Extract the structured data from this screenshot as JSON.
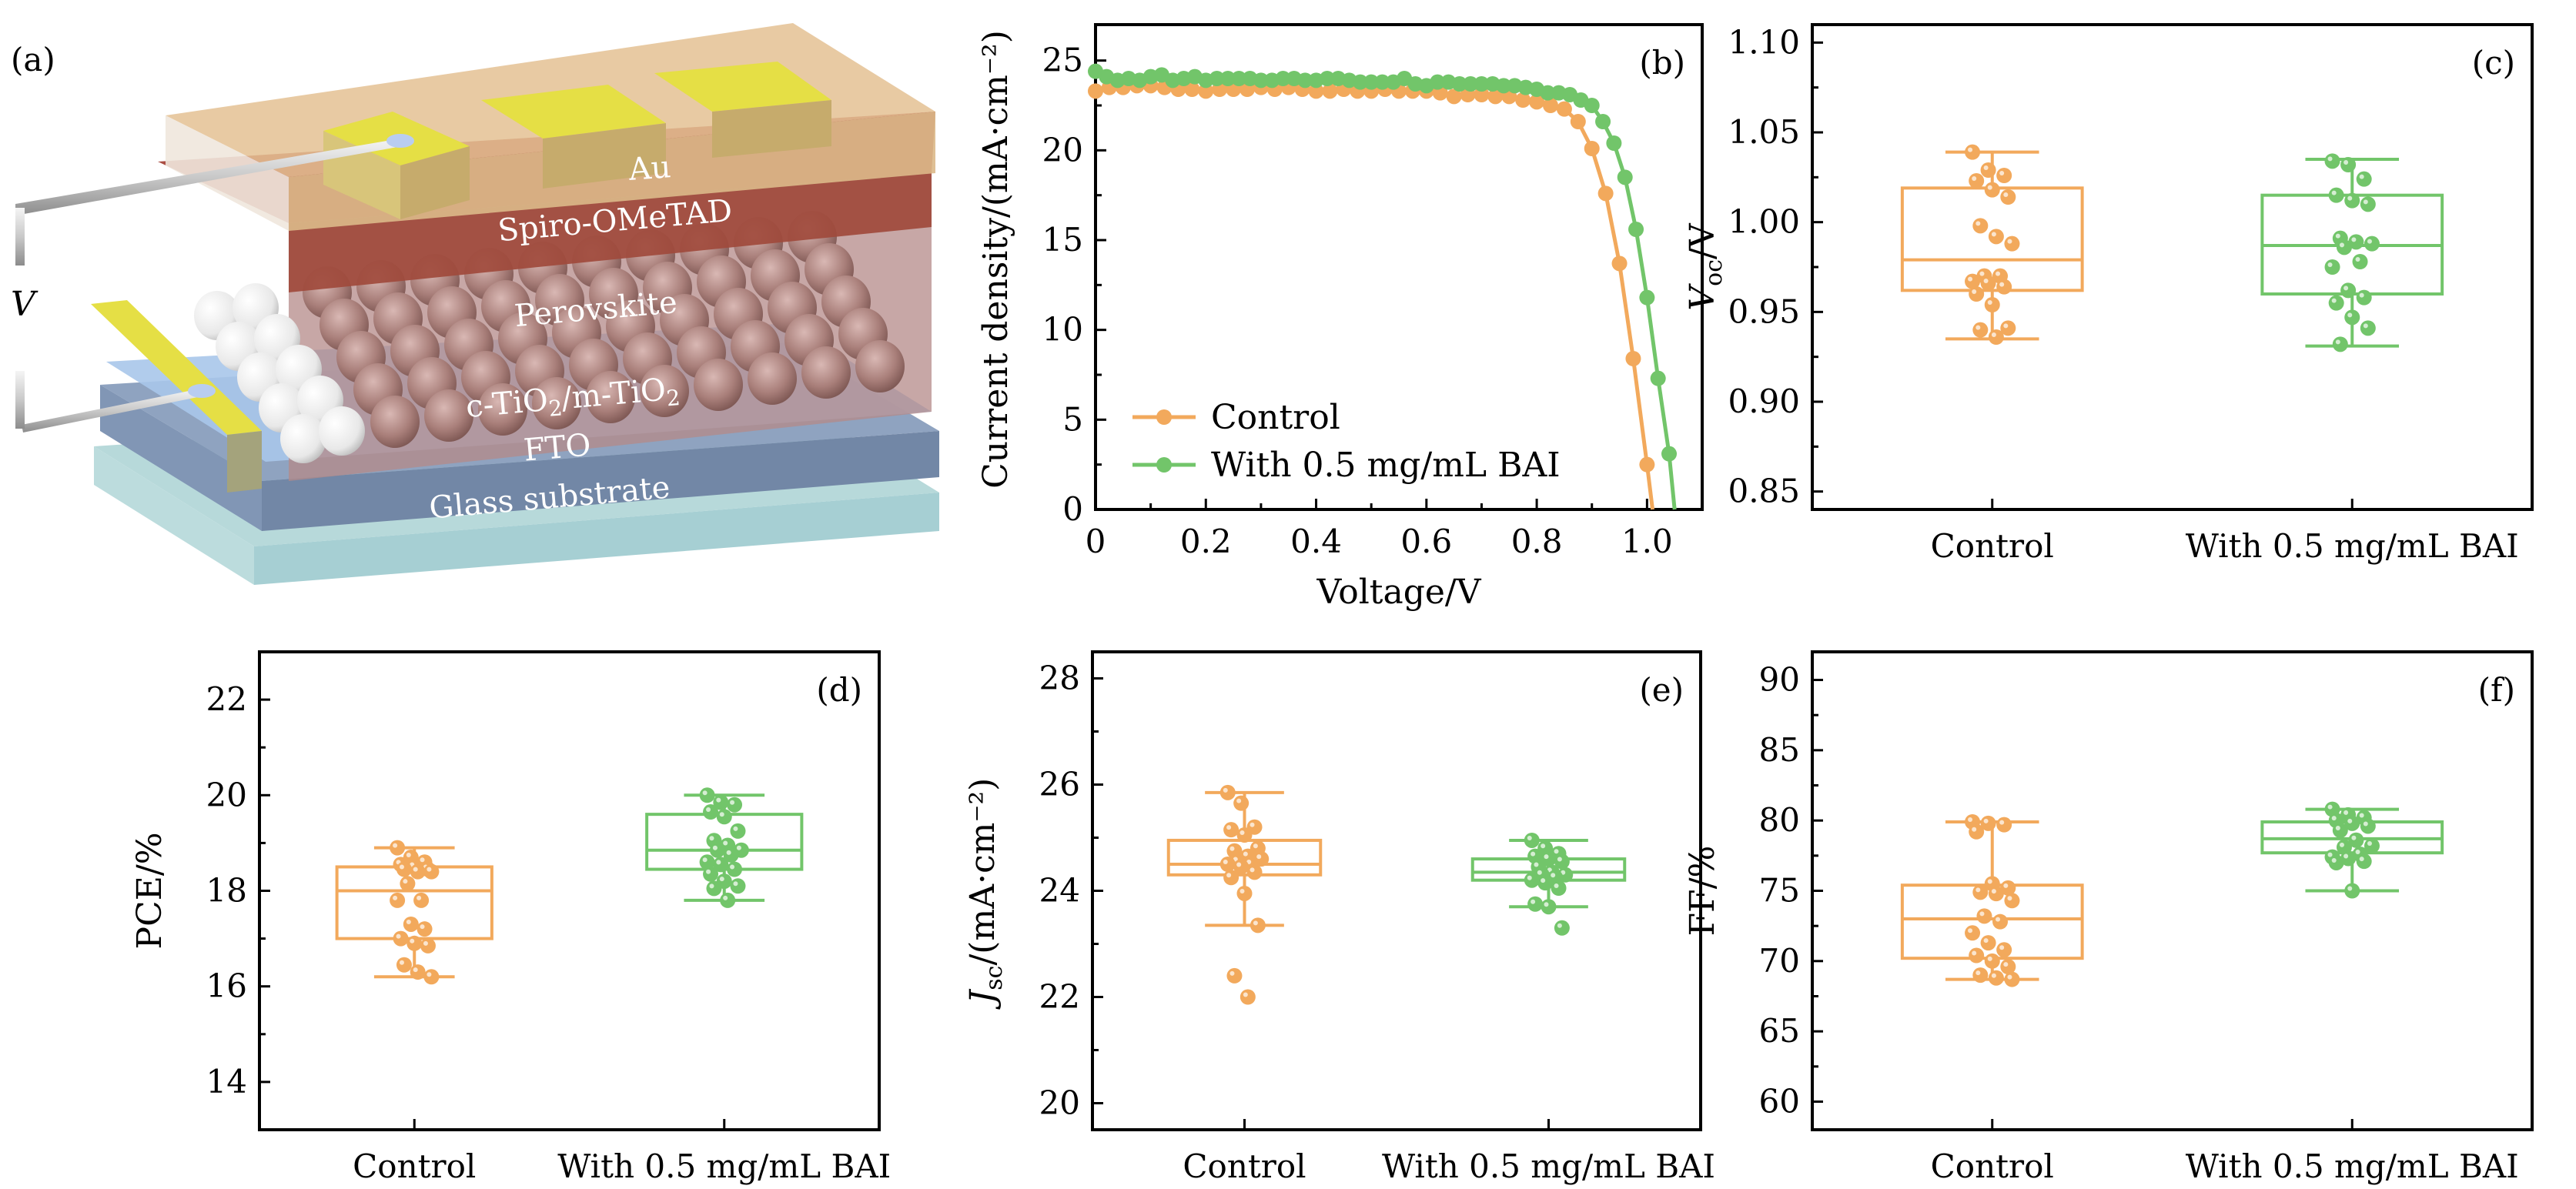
{
  "figure": {
    "colors": {
      "control": "#f2a95c",
      "bai": "#72c56a",
      "axis": "#000000"
    },
    "panel_a": {
      "label": "(a)",
      "voltage_symbol": "V",
      "layers": [
        "Au",
        "Spiro-OMeTAD",
        "Perovskite",
        "c-TiO2/m-TiO2",
        "FTO",
        "Glass substrate"
      ],
      "layer_colors": {
        "au": "#e5df45",
        "spiro": "#a6453a",
        "top": "#e4c193",
        "perovskite": "#b58d89",
        "tio2": "#a9c6ea",
        "fto": "#7287a6",
        "glass": "#a9d0d3"
      }
    }
  },
  "chart_data": [
    {
      "id": "b",
      "panel_label": "(b)",
      "type": "line",
      "title": "",
      "xlabel": "Voltage/V",
      "ylabel": "Current density/(mA·cm⁻²)",
      "xlim": [
        0,
        1.1
      ],
      "ylim": [
        0,
        27
      ],
      "xticks": [
        0,
        0.2,
        0.4,
        0.6,
        0.8,
        1.0
      ],
      "xtick_labels": [
        "0",
        "0.2",
        "0.4",
        "0.6",
        "0.8",
        "1.0"
      ],
      "yticks": [
        0,
        5,
        10,
        15,
        20,
        25
      ],
      "ytick_labels": [
        "0",
        "5",
        "10",
        "15",
        "20",
        "25"
      ],
      "legend_position": "bottom-left",
      "series": [
        {
          "name": "Control",
          "color": "#f2a95c",
          "x": [
            0,
            0.025,
            0.05,
            0.075,
            0.1,
            0.125,
            0.15,
            0.175,
            0.2,
            0.225,
            0.25,
            0.275,
            0.3,
            0.325,
            0.35,
            0.375,
            0.4,
            0.425,
            0.45,
            0.475,
            0.5,
            0.525,
            0.55,
            0.575,
            0.6,
            0.625,
            0.65,
            0.675,
            0.7,
            0.725,
            0.75,
            0.775,
            0.8,
            0.825,
            0.85,
            0.875,
            0.9,
            0.925,
            0.95,
            0.975,
            1.0,
            1.01
          ],
          "y": [
            23.3,
            23.5,
            23.5,
            23.6,
            23.6,
            23.5,
            23.4,
            23.4,
            23.3,
            23.4,
            23.4,
            23.4,
            23.5,
            23.4,
            23.5,
            23.4,
            23.3,
            23.3,
            23.4,
            23.3,
            23.3,
            23.4,
            23.3,
            23.3,
            23.3,
            23.2,
            23.0,
            23.1,
            23.1,
            23.0,
            23.0,
            22.8,
            22.7,
            22.5,
            22.3,
            21.6,
            20.1,
            17.6,
            13.7,
            8.4,
            2.5,
            0
          ]
        },
        {
          "name": "With 0.5 mg/mL BAI",
          "color": "#72c56a",
          "x": [
            0,
            0.02,
            0.04,
            0.06,
            0.08,
            0.1,
            0.12,
            0.14,
            0.16,
            0.18,
            0.2,
            0.22,
            0.24,
            0.26,
            0.28,
            0.3,
            0.32,
            0.34,
            0.36,
            0.38,
            0.4,
            0.42,
            0.44,
            0.46,
            0.48,
            0.5,
            0.52,
            0.54,
            0.56,
            0.58,
            0.6,
            0.62,
            0.64,
            0.66,
            0.68,
            0.7,
            0.72,
            0.74,
            0.76,
            0.78,
            0.8,
            0.82,
            0.84,
            0.86,
            0.88,
            0.9,
            0.92,
            0.94,
            0.96,
            0.98,
            1.0,
            1.02,
            1.04,
            1.05
          ],
          "y": [
            24.4,
            24.1,
            23.9,
            24.0,
            23.9,
            24.1,
            24.2,
            23.9,
            24.0,
            24.1,
            23.9,
            24.0,
            24.0,
            24.0,
            24.0,
            23.9,
            23.9,
            24.0,
            24.0,
            23.9,
            23.9,
            24.0,
            24.0,
            23.9,
            23.8,
            23.8,
            23.8,
            23.8,
            24.0,
            23.7,
            23.6,
            23.8,
            23.8,
            23.7,
            23.7,
            23.7,
            23.7,
            23.6,
            23.6,
            23.5,
            23.4,
            23.2,
            23.2,
            23.1,
            22.8,
            22.5,
            21.6,
            20.4,
            18.5,
            15.6,
            11.8,
            7.3,
            3.1,
            0
          ]
        }
      ]
    },
    {
      "id": "c",
      "panel_label": "(c)",
      "type": "box",
      "ylabel": "V_oc/V",
      "ylabel_main": "V",
      "ylabel_sub": "oc",
      "ylabel_suffix": "/V",
      "categories": [
        "Control",
        "With 0.5 mg/mL BAI"
      ],
      "ylim": [
        0.84,
        1.11
      ],
      "yticks": [
        0.85,
        0.9,
        0.95,
        1.0,
        1.05,
        1.1
      ],
      "ytick_labels": [
        "0.85",
        "0.90",
        "0.95",
        "1.00",
        "1.05",
        "1.10"
      ],
      "boxes": [
        {
          "name": "Control",
          "whisker_low": 0.935,
          "q1": 0.962,
          "median": 0.979,
          "q3": 1.019,
          "whisker_high": 1.039,
          "points": [
            1.039,
            1.029,
            1.026,
            1.023,
            1.018,
            1.014,
            0.998,
            0.992,
            0.988,
            0.97,
            0.97,
            0.967,
            0.966,
            0.964,
            0.96,
            0.954,
            0.941,
            0.94,
            0.936
          ]
        },
        {
          "name": "With 0.5 mg/mL BAI",
          "whisker_low": 0.931,
          "q1": 0.96,
          "median": 0.987,
          "q3": 1.015,
          "whisker_high": 1.035,
          "points": [
            1.034,
            1.032,
            1.024,
            1.015,
            1.012,
            1.01,
            0.991,
            0.989,
            0.988,
            0.986,
            0.978,
            0.975,
            0.962,
            0.958,
            0.955,
            0.947,
            0.941,
            0.932
          ]
        }
      ]
    },
    {
      "id": "d",
      "panel_label": "(d)",
      "type": "box",
      "ylabel": "PCE/%",
      "categories": [
        "Control",
        "With 0.5 mg/mL BAI"
      ],
      "ylim": [
        13,
        23
      ],
      "yticks": [
        14,
        16,
        18,
        20,
        22
      ],
      "ytick_labels": [
        "14",
        "16",
        "18",
        "20",
        "22"
      ],
      "boxes": [
        {
          "name": "Control",
          "whisker_low": 16.2,
          "q1": 17.0,
          "median": 18.0,
          "q3": 18.5,
          "whisker_high": 18.9,
          "points": [
            18.9,
            18.7,
            18.6,
            18.55,
            18.5,
            18.45,
            18.45,
            18.4,
            18.4,
            18.15,
            17.8,
            17.8,
            17.3,
            17.2,
            17.0,
            16.9,
            16.85,
            16.45,
            16.3,
            16.2
          ]
        },
        {
          "name": "With 0.5 mg/mL BAI",
          "whisker_low": 17.8,
          "q1": 18.45,
          "median": 18.85,
          "q3": 19.6,
          "whisker_high": 20.0,
          "points": [
            20.0,
            19.85,
            19.8,
            19.65,
            19.55,
            19.25,
            19.05,
            18.95,
            18.85,
            18.85,
            18.75,
            18.6,
            18.55,
            18.45,
            18.35,
            18.2,
            18.1,
            18.05,
            17.8
          ]
        }
      ]
    },
    {
      "id": "e",
      "panel_label": "(e)",
      "type": "box",
      "ylabel": "J_sc/(mA·cm⁻²)",
      "ylabel_main": "J",
      "ylabel_sub": "sc",
      "ylabel_suffix": "/(mA·cm⁻²)",
      "categories": [
        "Control",
        "With 0.5 mg/mL BAI"
      ],
      "ylim": [
        19.5,
        28.5
      ],
      "yticks": [
        20,
        22,
        24,
        26,
        28
      ],
      "ytick_labels": [
        "20",
        "22",
        "24",
        "26",
        "28"
      ],
      "boxes": [
        {
          "name": "Control",
          "whisker_low": 23.35,
          "q1": 24.3,
          "median": 24.5,
          "q3": 24.95,
          "whisker_high": 25.85,
          "points": [
            25.85,
            25.65,
            25.2,
            25.15,
            25.05,
            24.8,
            24.75,
            24.65,
            24.6,
            24.55,
            24.5,
            24.5,
            24.45,
            24.35,
            24.25,
            23.95,
            23.35,
            22.4,
            22.0
          ]
        },
        {
          "name": "With 0.5 mg/mL BAI",
          "whisker_low": 23.7,
          "q1": 24.2,
          "median": 24.35,
          "q3": 24.6,
          "whisker_high": 24.95,
          "points": [
            24.95,
            24.8,
            24.7,
            24.65,
            24.6,
            24.55,
            24.45,
            24.35,
            24.3,
            24.3,
            24.25,
            24.2,
            24.15,
            24.05,
            23.75,
            23.7,
            23.3
          ]
        }
      ]
    },
    {
      "id": "f",
      "panel_label": "(f)",
      "type": "box",
      "ylabel": "FF/%",
      "categories": [
        "Control",
        "With 0.5 mg/mL BAI"
      ],
      "ylim": [
        58,
        92
      ],
      "yticks": [
        60,
        65,
        70,
        75,
        80,
        85,
        90
      ],
      "ytick_labels": [
        "60",
        "65",
        "70",
        "75",
        "80",
        "85",
        "90"
      ],
      "boxes": [
        {
          "name": "Control",
          "whisker_low": 68.7,
          "q1": 70.2,
          "median": 73.0,
          "q3": 75.4,
          "whisker_high": 79.9,
          "points": [
            79.9,
            79.8,
            79.7,
            79.2,
            75.5,
            75.2,
            74.9,
            74.8,
            74.3,
            73.2,
            72.8,
            72.0,
            71.3,
            70.8,
            70.4,
            70.0,
            69.6,
            69.0,
            68.8,
            68.7
          ]
        },
        {
          "name": "With 0.5 mg/mL BAI",
          "whisker_low": 75.0,
          "q1": 77.7,
          "median": 78.7,
          "q3": 79.9,
          "whisker_high": 80.8,
          "points": [
            80.8,
            80.4,
            80.2,
            80.0,
            79.8,
            79.6,
            79.3,
            78.6,
            78.2,
            78.1,
            77.6,
            77.4,
            77.3,
            77.1,
            77.0,
            75.0
          ]
        }
      ]
    }
  ]
}
